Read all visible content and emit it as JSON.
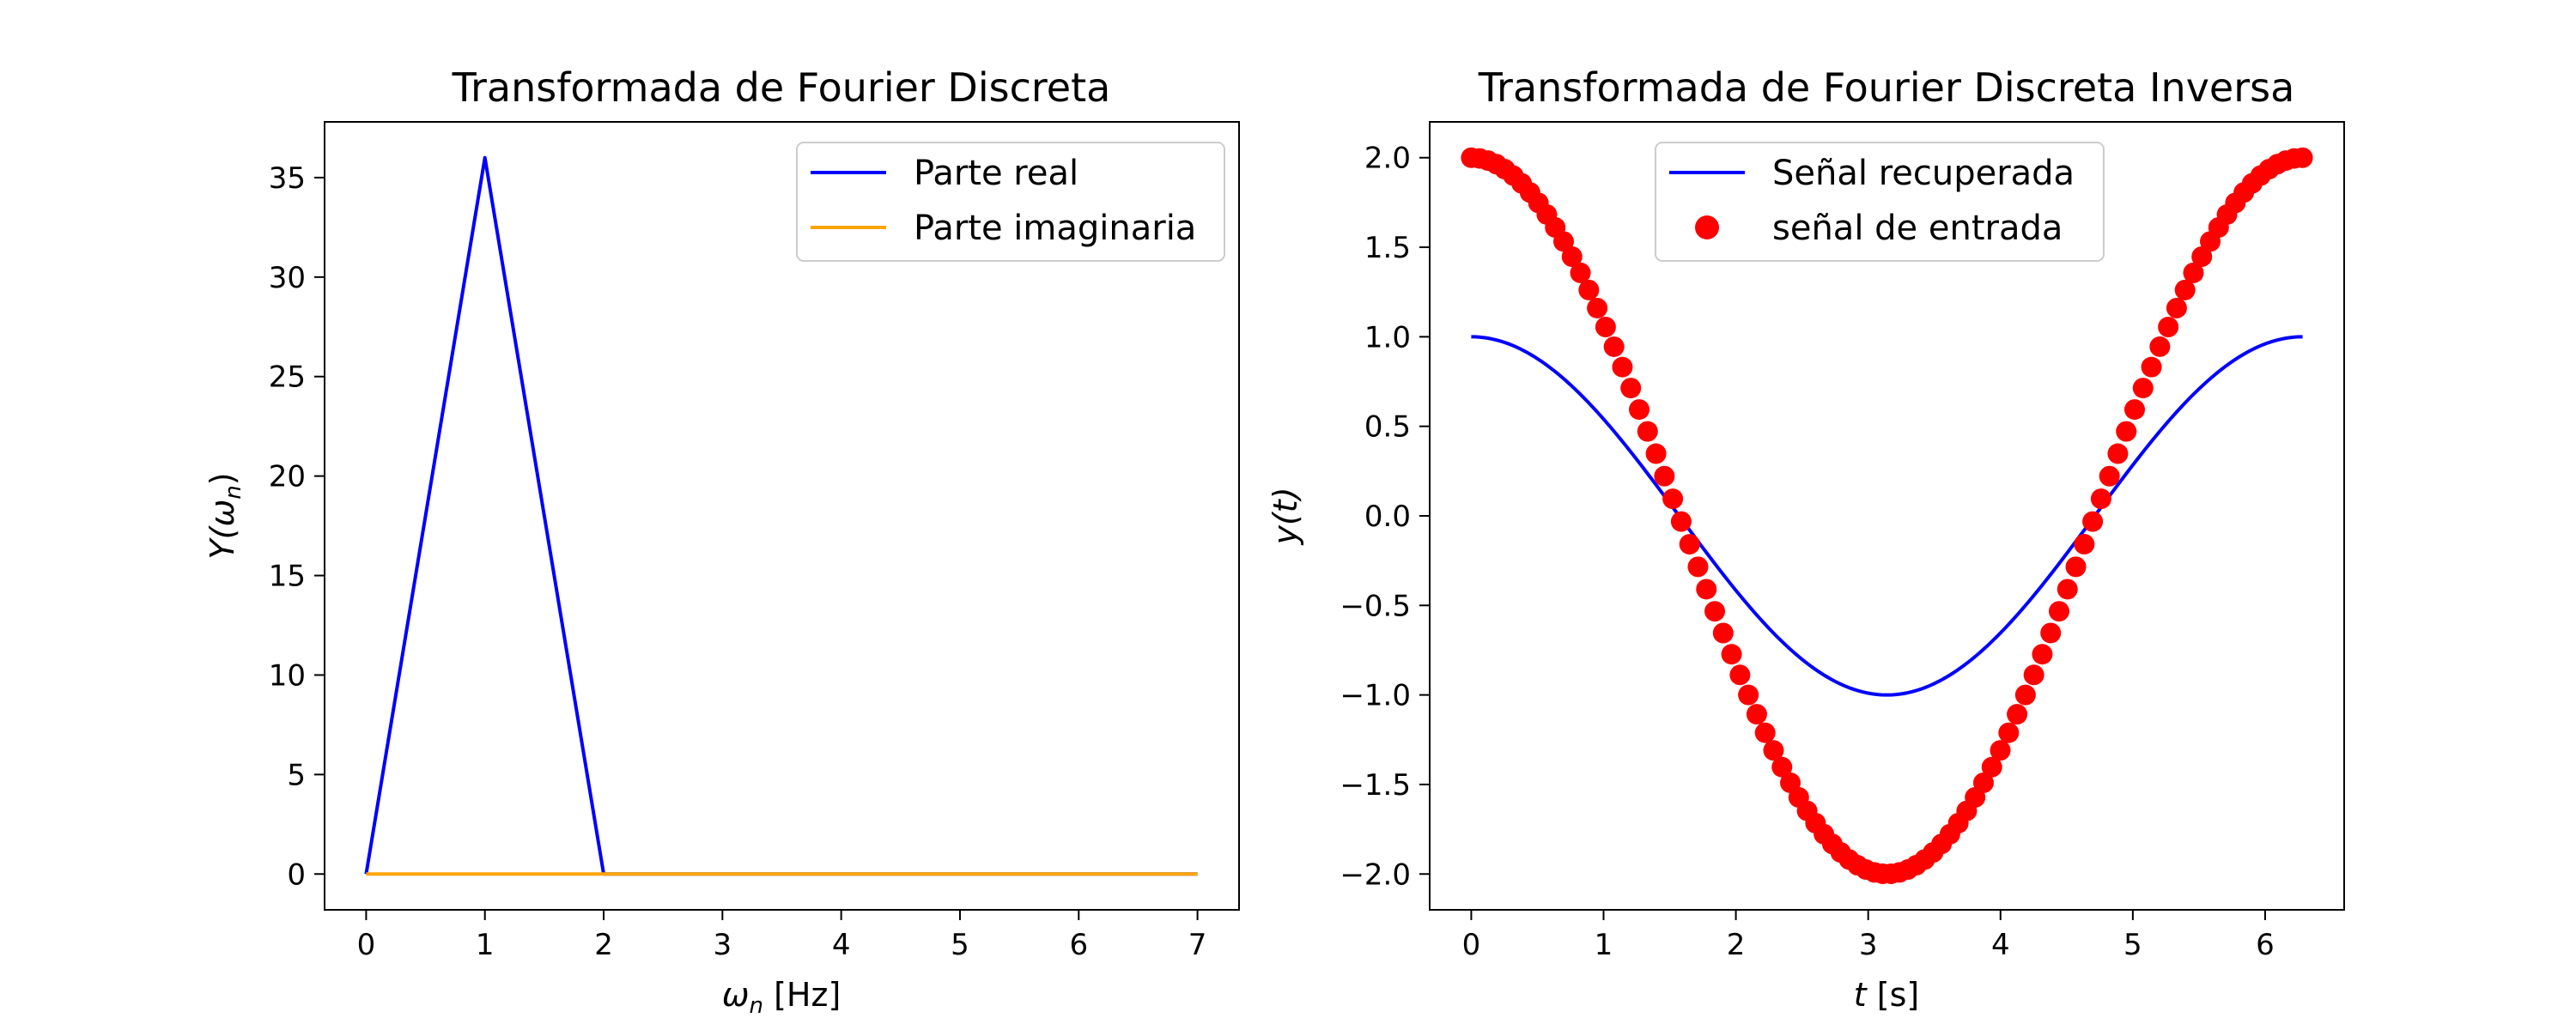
{
  "chart_data": [
    {
      "type": "line",
      "title": "Transformada de Fourier Discreta",
      "xlabel": "ω",
      "xlabel_sub": "n",
      "xlabel_unit": " [Hz]",
      "ylabel": "Y(ω",
      "ylabel_sub": "n",
      "ylabel_end": ")",
      "xlim": [
        -0.35,
        7.35
      ],
      "ylim": [
        -1.8,
        37.8
      ],
      "xticks": [
        0,
        1,
        2,
        3,
        4,
        5,
        6,
        7
      ],
      "yticks": [
        0,
        5,
        10,
        15,
        20,
        25,
        30,
        35
      ],
      "legend_position": "upper right",
      "grid": false,
      "series": [
        {
          "name": "Parte real",
          "color": "#0000ff",
          "x": [
            0,
            1,
            2,
            3,
            4,
            5,
            6,
            7
          ],
          "y": [
            0,
            36,
            0,
            0,
            0,
            0,
            0,
            0
          ]
        },
        {
          "name": "Parte imaginaria",
          "color": "#ffa500",
          "x": [
            0,
            1,
            2,
            3,
            4,
            5,
            6,
            7
          ],
          "y": [
            0,
            0,
            0,
            0,
            0,
            0,
            0,
            0
          ]
        }
      ]
    },
    {
      "type": "line",
      "title": "Transformada de Fourier Discreta Inversa",
      "xlabel": "t",
      "xlabel_unit": " [s]",
      "ylabel": "y(t)",
      "xlim": [
        -0.3142,
        6.5973
      ],
      "ylim": [
        -2.2,
        2.2
      ],
      "xticks": [
        0,
        1,
        2,
        3,
        4,
        5,
        6
      ],
      "yticks": [
        -2.0,
        -1.5,
        -1.0,
        -0.5,
        0.0,
        0.5,
        1.0,
        1.5,
        2.0
      ],
      "legend_position": "upper center",
      "grid": false,
      "series": [
        {
          "name": "Señal recuperada",
          "color": "#0000ff",
          "style": "line",
          "function": "cos",
          "amplitude": 1,
          "x_range": [
            0,
            6.2832
          ]
        },
        {
          "name": "señal de entrada",
          "color": "#ff0000",
          "style": "markers",
          "function": "cos",
          "amplitude": 2,
          "x_range": [
            0,
            6.2832
          ],
          "n_points": 100
        }
      ]
    }
  ]
}
